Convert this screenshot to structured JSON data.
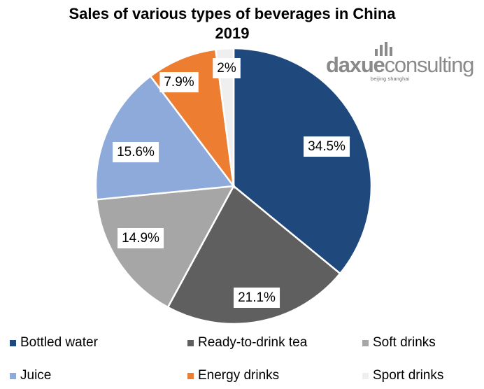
{
  "chart_data": {
    "type": "pie",
    "title_line1": "Sales of various types of beverages in China",
    "title_line2": "2019",
    "slices": [
      {
        "name": "Bottled water",
        "value": 34.5,
        "label": "34.5%",
        "color": "#1f497d"
      },
      {
        "name": "Ready-to-drink tea",
        "value": 21.1,
        "label": "21.1%",
        "color": "#5f5f5f"
      },
      {
        "name": "Soft drinks",
        "value": 14.9,
        "label": "14.9%",
        "color": "#a6a6a6"
      },
      {
        "name": "Juice",
        "value": 15.6,
        "label": "15.6%",
        "color": "#8eaadb"
      },
      {
        "name": "Energy drinks",
        "value": 7.9,
        "label": "7.9%",
        "color": "#ed7d31"
      },
      {
        "name": "Sport drinks",
        "value": 2.0,
        "label": "2%",
        "color": "#efefef"
      }
    ],
    "legend_position": "bottom"
  },
  "logo": {
    "brand_bold": "daxue",
    "brand_light": "consulting",
    "tagline": "beijing shanghai",
    "color": "#8a8a8a"
  }
}
